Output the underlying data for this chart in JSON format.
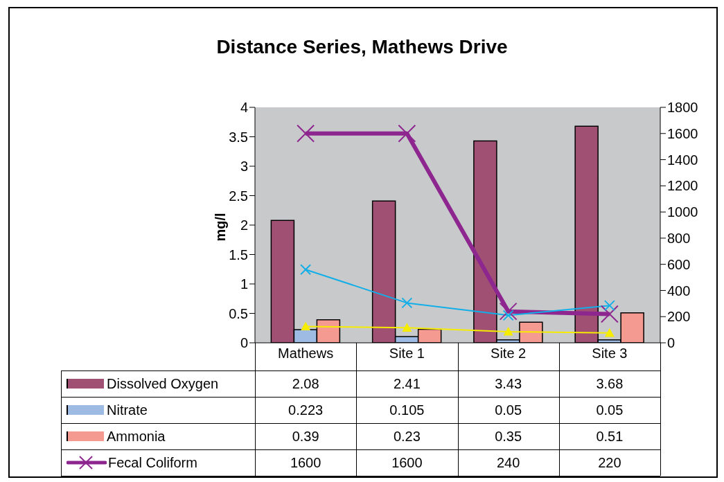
{
  "chart_data": {
    "type": "bar",
    "title": "Distance Series, Mathews Drive",
    "ylabel": "mg/l",
    "categories": [
      "Mathews",
      "Site 1",
      "Site 2",
      "Site 3"
    ],
    "series": [
      {
        "name": "Dissolved Oxygen",
        "color": "#a05073",
        "values": [
          2.08,
          2.41,
          3.43,
          3.68
        ],
        "value_labels": [
          "2.08",
          "2.41",
          "3.43",
          "3.68"
        ]
      },
      {
        "name": "Nitrate",
        "color": "#9dbbe3",
        "values": [
          0.223,
          0.105,
          0.05,
          0.05
        ],
        "value_labels": [
          "0.223",
          "0.105",
          "0.05",
          "0.05"
        ]
      },
      {
        "name": "Ammonia",
        "color": "#f59a90",
        "values": [
          0.39,
          0.23,
          0.35,
          0.51
        ],
        "value_labels": [
          "0.39",
          "0.23",
          "0.35",
          "0.51"
        ]
      },
      {
        "name": "Fecal Coliform",
        "type": "line",
        "axis": "y2",
        "color": "#8e268f",
        "marker": "cross",
        "values": [
          1600,
          1600,
          240,
          220
        ],
        "value_labels": [
          "1600",
          "1600",
          "240",
          "220"
        ]
      },
      {
        "type": "line",
        "axis": "y2",
        "color": "#12aee8",
        "marker": "cross",
        "values": [
          560,
          305,
          210,
          285
        ]
      },
      {
        "type": "line",
        "axis": "y2",
        "color": "#f5ec00",
        "marker": "triangle",
        "values": [
          125,
          115,
          85,
          75
        ]
      }
    ],
    "ylim": [
      0,
      4
    ],
    "yticks": [
      0,
      0.5,
      1,
      1.5,
      2,
      2.5,
      3,
      3.5,
      4
    ],
    "y2lim": [
      0,
      1800
    ],
    "y2ticks": [
      0,
      200,
      400,
      600,
      800,
      1000,
      1200,
      1400,
      1600,
      1800
    ],
    "grid": false,
    "legend": "bottom"
  }
}
